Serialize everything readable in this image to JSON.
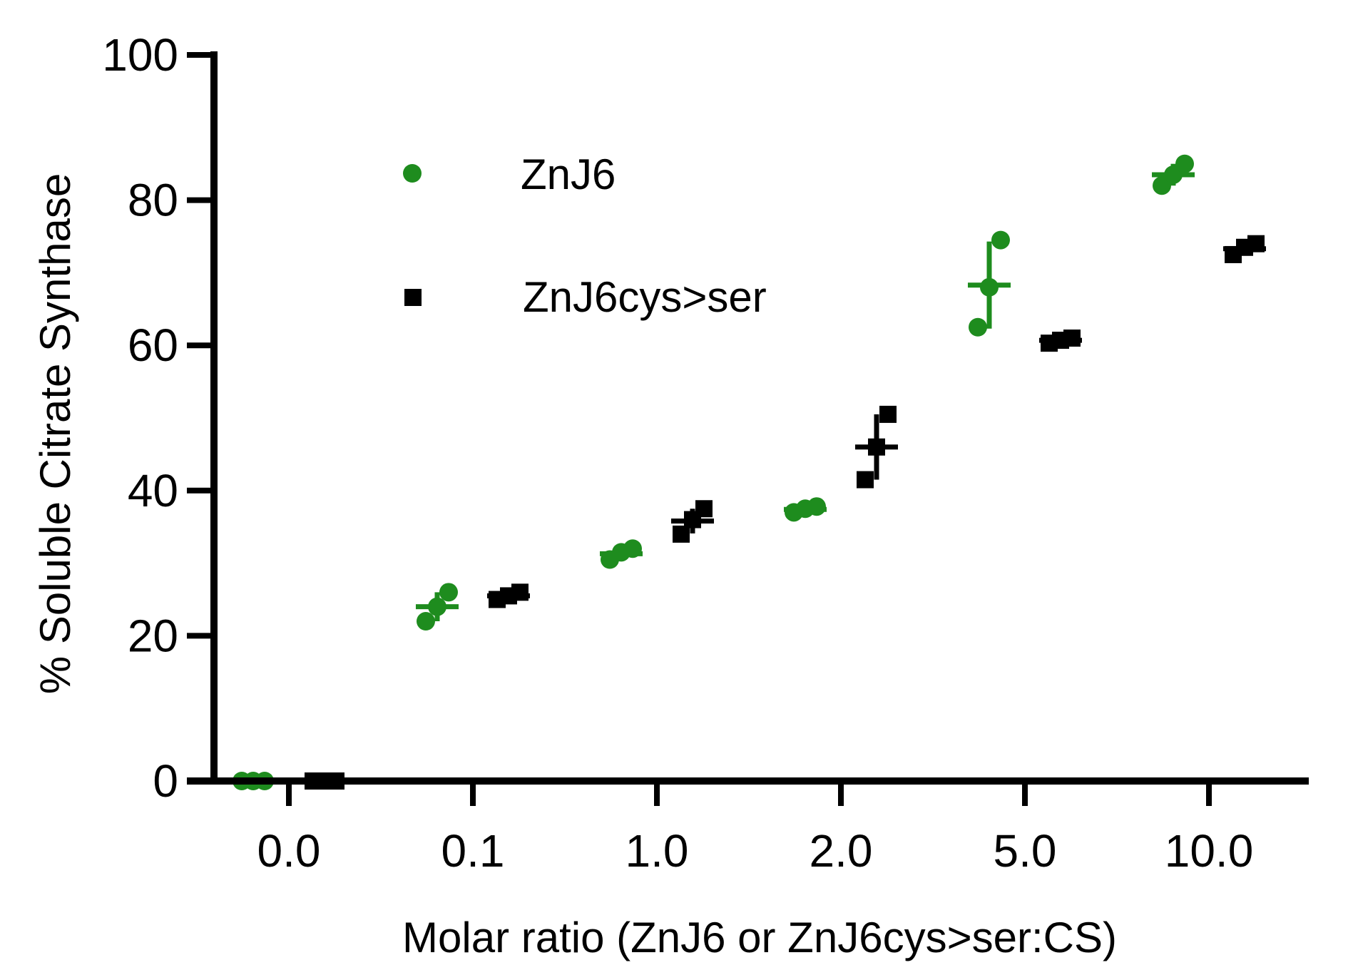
{
  "chart_data": {
    "type": "scatter",
    "title": "",
    "xlabel": "Molar ratio (ZnJ6 or ZnJ6cys>ser:CS)",
    "ylabel": "% Soluble Citrate Synthase",
    "categories": [
      "0.0",
      "0.1",
      "1.0",
      "2.0",
      "5.0",
      "10.0"
    ],
    "ylim": [
      0,
      100
    ],
    "yticks": [
      "0",
      "20",
      "40",
      "60",
      "80",
      "100"
    ],
    "legend_position": "top-left",
    "grid": false,
    "series": [
      {
        "name": "ZnJ6",
        "color": "#1e8c1e",
        "marker": "circle",
        "points": [
          [
            0,
            0,
            0
          ],
          [
            22,
            24,
            26
          ],
          [
            30.5,
            31.5,
            32
          ],
          [
            37,
            37.5,
            37.8
          ],
          [
            62.5,
            68,
            74.5
          ],
          [
            82,
            83.5,
            85
          ]
        ],
        "means": [
          0,
          24,
          31.3,
          37.4,
          68.3,
          83.5
        ],
        "errors": [
          0,
          2,
          0.8,
          0.4,
          6,
          1.5
        ]
      },
      {
        "name": "ZnJ6cys>ser",
        "color": "#000000",
        "marker": "square",
        "points": [
          [
            0,
            0,
            0
          ],
          [
            25,
            25.5,
            26
          ],
          [
            34,
            36,
            37.5
          ],
          [
            41.5,
            46,
            50.5
          ],
          [
            60.3,
            60.7,
            61
          ],
          [
            72.5,
            73.5,
            74
          ]
        ],
        "means": [
          0,
          25.5,
          35.8,
          46,
          60.7,
          73.3
        ],
        "errors": [
          0,
          0.4,
          1.7,
          4.5,
          0.3,
          0.7
        ]
      }
    ]
  }
}
